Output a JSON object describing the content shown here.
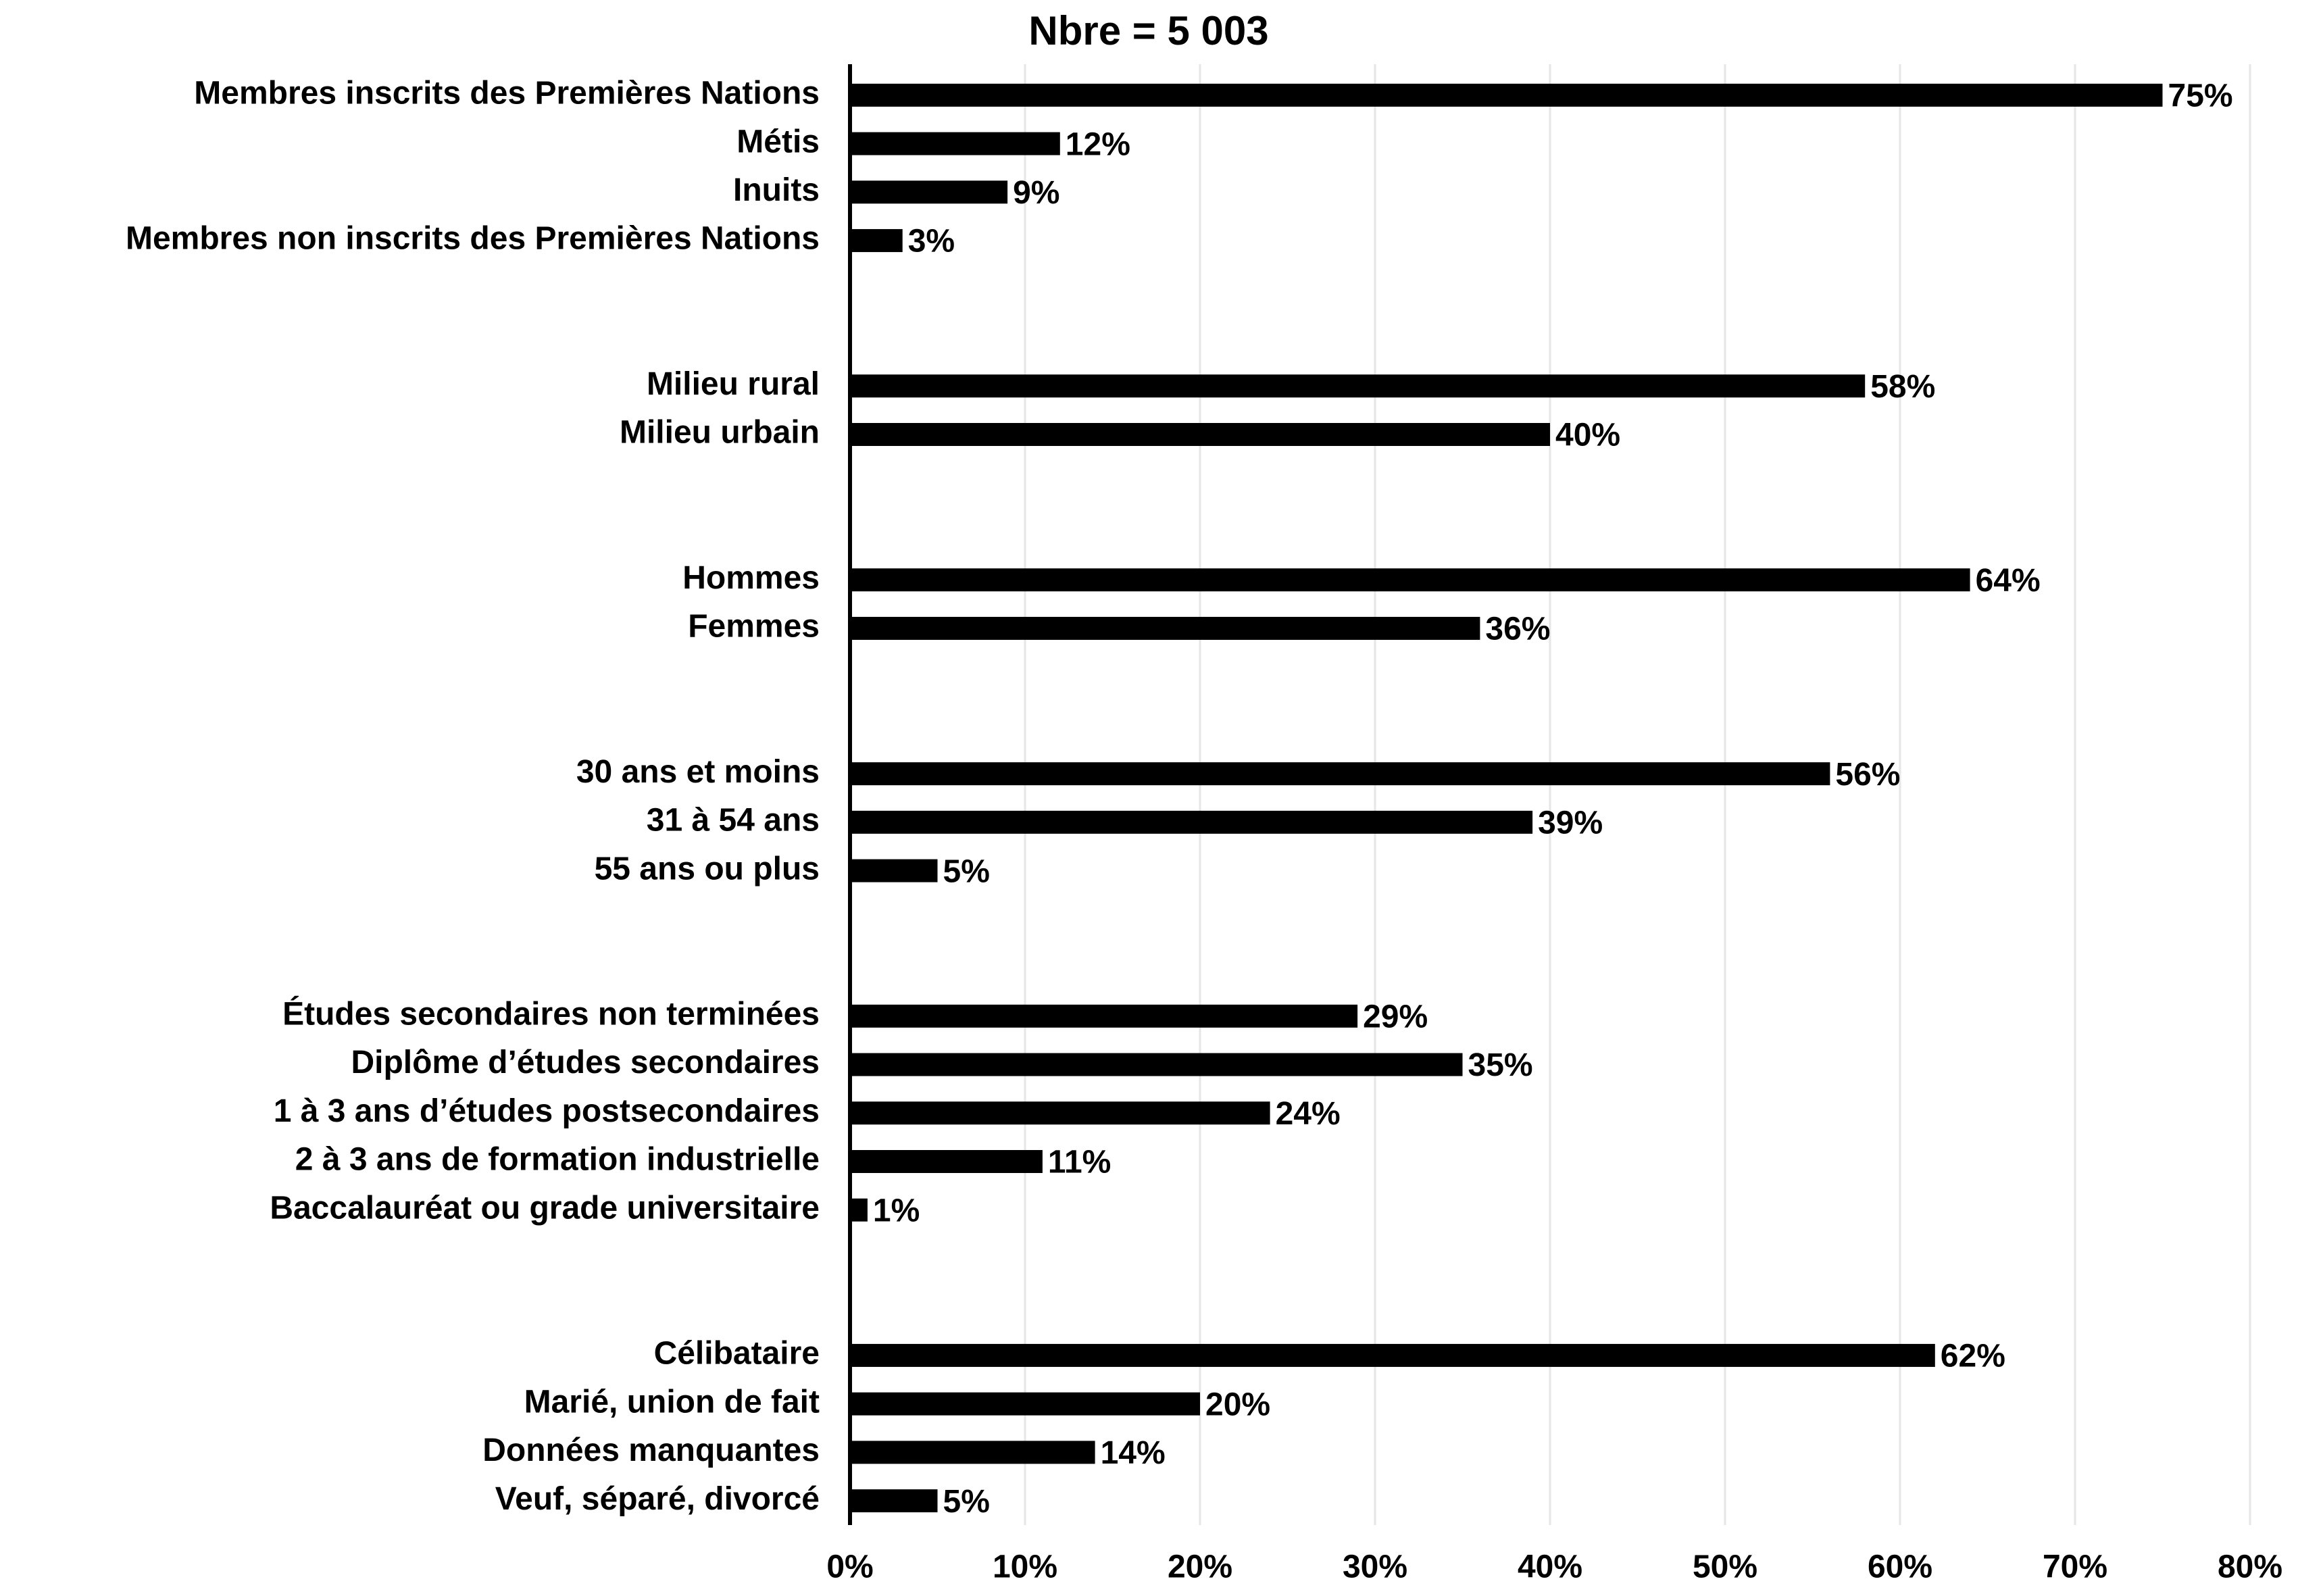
{
  "chart_data": {
    "type": "barh",
    "title": "Nbre = 5 003",
    "categories": [
      "Membres inscrits des Premières Nations",
      "Métis",
      "Inuits",
      "Membres non inscrits des Premières Nations",
      null,
      null,
      "Milieu rural",
      "Milieu urbain",
      null,
      null,
      "Hommes",
      "Femmes",
      null,
      null,
      "30 ans et moins",
      "31 à 54 ans",
      "55 ans ou plus",
      null,
      null,
      "Études secondaires non terminées",
      "Diplôme d’études secondaires",
      "1 à 3 ans d’études postsecondaires",
      "2 à 3 ans de formation industrielle",
      "Baccalauréat ou grade universitaire",
      null,
      null,
      "Célibataire",
      "Marié, union de fait",
      "Données manquantes",
      "Veuf, séparé, divorcé"
    ],
    "values": [
      75,
      12,
      9,
      3,
      null,
      null,
      58,
      40,
      null,
      null,
      64,
      36,
      null,
      null,
      56,
      39,
      5,
      null,
      null,
      29,
      35,
      24,
      11,
      1,
      null,
      null,
      62,
      20,
      14,
      5
    ],
    "value_labels": [
      "75%",
      "12%",
      "9%",
      "3%",
      null,
      null,
      "58%",
      "40%",
      null,
      null,
      "64%",
      "36%",
      null,
      null,
      "56%",
      "39%",
      "5%",
      null,
      null,
      "29%",
      "35%",
      "24%",
      "11%",
      "1%",
      null,
      null,
      "62%",
      "20%",
      "14%",
      "5%"
    ],
    "color": "#000000",
    "xlim": [
      0,
      80
    ],
    "xticks": [
      {
        "value": 0,
        "label": "0%"
      },
      {
        "value": 10,
        "label": "10%"
      },
      {
        "value": 20,
        "label": "20%"
      },
      {
        "value": 30,
        "label": "30%"
      },
      {
        "value": 40,
        "label": "40%"
      },
      {
        "value": 50,
        "label": "50%"
      },
      {
        "value": 60,
        "label": "60%"
      },
      {
        "value": 70,
        "label": "70%"
      },
      {
        "value": 80,
        "label": "80%"
      }
    ],
    "grid": true
  }
}
